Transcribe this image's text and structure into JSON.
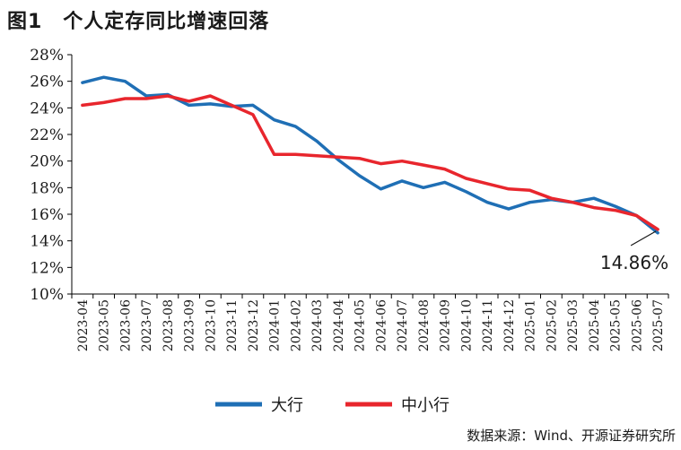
{
  "figure": {
    "title": "图1　个人定存同比增速回落",
    "source": "数据来源：Wind、开源证券研究所"
  },
  "chart_data": {
    "type": "line",
    "categories": [
      "2023-04",
      "2023-05",
      "2023-06",
      "2023-07",
      "2023-08",
      "2023-09",
      "2023-10",
      "2023-11",
      "2023-12",
      "2024-01",
      "2024-02",
      "2024-03",
      "2024-04",
      "2024-05",
      "2024-06",
      "2024-07",
      "2024-08",
      "2024-09",
      "2024-10",
      "2024-11",
      "2024-12",
      "2025-01",
      "2025-02",
      "2025-03",
      "2025-04",
      "2025-05",
      "2025-06",
      "2025-07"
    ],
    "series": [
      {
        "name": "大行",
        "color": "#1f6fb5",
        "values": [
          25.9,
          26.3,
          26.0,
          24.9,
          25.0,
          24.2,
          24.3,
          24.1,
          24.2,
          23.1,
          22.6,
          21.5,
          20.1,
          18.9,
          17.9,
          18.5,
          18.0,
          18.4,
          17.7,
          16.9,
          16.4,
          16.9,
          17.1,
          16.9,
          17.2,
          16.6,
          15.9,
          14.6
        ]
      },
      {
        "name": "中小行",
        "color": "#e8262d",
        "values": [
          24.2,
          24.4,
          24.7,
          24.7,
          24.9,
          24.5,
          24.9,
          24.2,
          23.5,
          20.5,
          20.5,
          20.4,
          20.3,
          20.2,
          19.8,
          20.0,
          19.7,
          19.4,
          18.7,
          18.3,
          17.9,
          17.8,
          17.2,
          16.9,
          16.5,
          16.3,
          15.9,
          14.86
        ]
      }
    ],
    "ylim": [
      10,
      28
    ],
    "yticks": [
      "10%",
      "12%",
      "14%",
      "16%",
      "18%",
      "20%",
      "22%",
      "24%",
      "26%",
      "28%"
    ],
    "annotation": {
      "text": "14.86%",
      "category": "2025-07",
      "value": 14.86
    },
    "legend": {
      "position": "bottom"
    },
    "grid": false
  }
}
